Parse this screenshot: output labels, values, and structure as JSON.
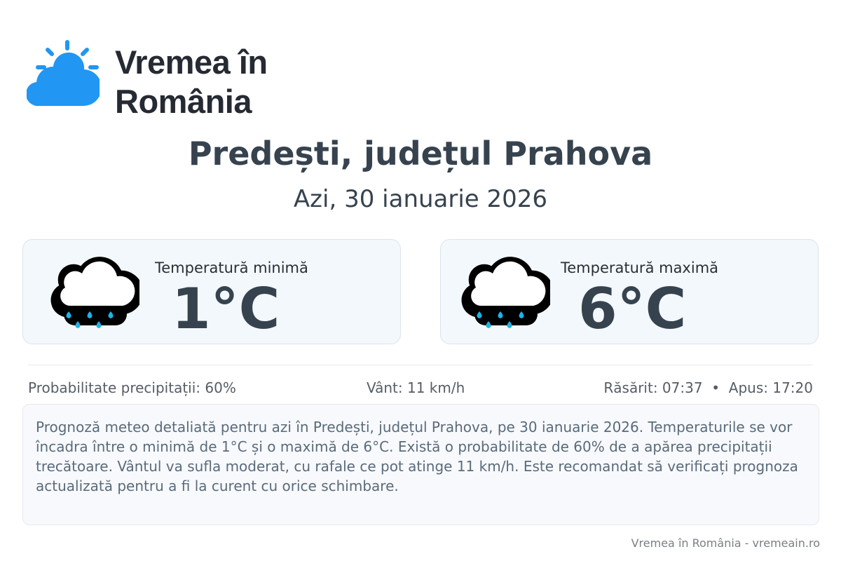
{
  "logo": {
    "line1": "Vremea în",
    "line2": "România",
    "icon": "sun-cloud-icon",
    "color": "#2196f3"
  },
  "header": {
    "title": "Predești, județul Prahova",
    "subtitle": "Azi, 30 ianuarie 2026"
  },
  "cards": [
    {
      "label": "Temperatură minimă",
      "value": "1°C",
      "icon": "rain-cloud-icon"
    },
    {
      "label": "Temperatură maximă",
      "value": "6°C",
      "icon": "rain-cloud-icon"
    }
  ],
  "info": {
    "precipitation": "Probabilitate precipitații: 60%",
    "wind": "Vânt: 11 km/h",
    "sun": "Răsărit: 07:37  •  Apus: 17:20"
  },
  "description": "Prognoză meteo detaliată pentru azi în Predești, județul Prahova, pe 30 ianuarie 2026. Temperaturile se vor încadra între o minimă de 1°C și o maximă de 6°C. Există o probabilitate de 60% de a apărea precipitații trecătoare. Vântul va sufla moderat, cu rafale ce pot atinge 11 km/h. Este recomandat să verificați prognoza actualizată pentru a fi la curent cu orice schimbare.",
  "footer": "Vremea în România - vremeain.ro"
}
